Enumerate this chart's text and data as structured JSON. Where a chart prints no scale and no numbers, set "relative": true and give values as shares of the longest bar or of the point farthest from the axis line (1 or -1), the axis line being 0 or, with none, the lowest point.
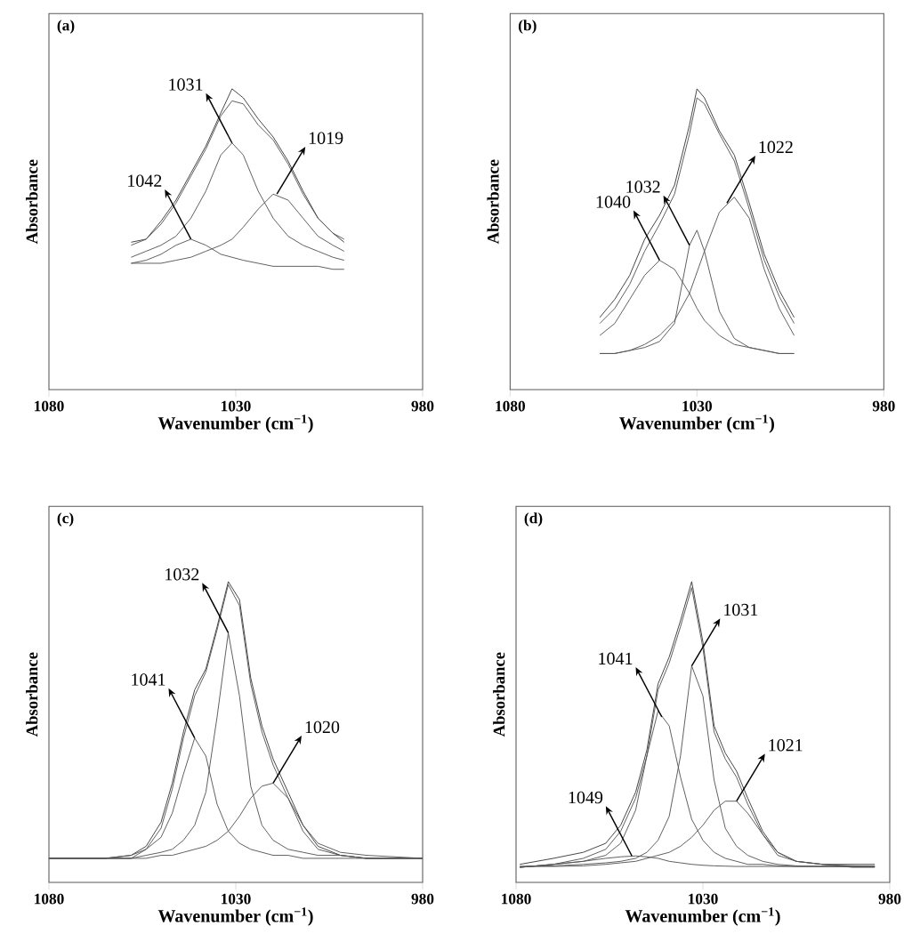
{
  "chart_data": [
    {
      "type": "line",
      "title": "(a)",
      "xlabel": "Wavenumber (cm$^{−1}$)",
      "ylabel": "Absorbance",
      "relative": true,
      "xlim": [
        1080,
        980
      ],
      "xticks": [
        1080,
        1030,
        980
      ],
      "x": [
        1058,
        1054,
        1050,
        1046,
        1042,
        1038,
        1034,
        1031,
        1028,
        1024,
        1020,
        1016,
        1012,
        1008,
        1004,
        1001
      ],
      "series": [
        {
          "color": "#3a3a3a",
          "values": [
            0.49,
            0.5,
            0.56,
            0.63,
            0.72,
            0.81,
            0.92,
            1.0,
            0.97,
            0.9,
            0.84,
            0.76,
            0.66,
            0.57,
            0.52,
            0.49
          ]
        },
        {
          "color": "#555555",
          "values": [
            0.48,
            0.5,
            0.55,
            0.62,
            0.71,
            0.8,
            0.91,
            0.96,
            0.95,
            0.88,
            0.83,
            0.75,
            0.65,
            0.57,
            0.52,
            0.5
          ]
        },
        {
          "color": "#555555",
          "values": [
            0.42,
            0.43,
            0.45,
            0.48,
            0.5,
            0.48,
            0.45,
            0.44,
            0.43,
            0.42,
            0.41,
            0.41,
            0.41,
            0.41,
            0.4,
            0.4
          ]
        },
        {
          "color": "#555555",
          "values": [
            0.44,
            0.46,
            0.48,
            0.51,
            0.57,
            0.66,
            0.78,
            0.82,
            0.78,
            0.66,
            0.57,
            0.51,
            0.48,
            0.46,
            0.44,
            0.43
          ]
        },
        {
          "color": "#555555",
          "values": [
            0.42,
            0.42,
            0.42,
            0.43,
            0.44,
            0.46,
            0.48,
            0.5,
            0.54,
            0.6,
            0.65,
            0.63,
            0.57,
            0.51,
            0.48,
            0.46
          ]
        }
      ],
      "annotations": [
        {
          "text": "1042",
          "x": 1042,
          "y": 0.5
        },
        {
          "text": "1031",
          "x": 1031,
          "y": 0.82
        },
        {
          "text": "1019",
          "x": 1019,
          "y": 0.65
        }
      ]
    },
    {
      "type": "line",
      "title": "(b)",
      "xlabel": "Wavenumber (cm$^{−1}$)",
      "ylabel": "Absorbance",
      "relative": true,
      "xlim": [
        1080,
        980
      ],
      "xticks": [
        1080,
        1030,
        980
      ],
      "x": [
        1056,
        1052,
        1048,
        1044,
        1040,
        1036,
        1032,
        1030,
        1028,
        1024,
        1020,
        1016,
        1012,
        1008,
        1004
      ],
      "series": [
        {
          "color": "#3a3a3a",
          "values": [
            0.24,
            0.3,
            0.38,
            0.5,
            0.58,
            0.68,
            0.88,
            1.0,
            0.97,
            0.86,
            0.78,
            0.62,
            0.45,
            0.33,
            0.24
          ]
        },
        {
          "color": "#555555",
          "values": [
            0.22,
            0.27,
            0.35,
            0.46,
            0.55,
            0.65,
            0.85,
            0.97,
            0.95,
            0.85,
            0.76,
            0.6,
            0.43,
            0.31,
            0.22
          ]
        },
        {
          "color": "#555555",
          "values": [
            0.18,
            0.22,
            0.3,
            0.38,
            0.43,
            0.4,
            0.32,
            0.27,
            0.23,
            0.18,
            0.15,
            0.14,
            0.13,
            0.12,
            0.12
          ]
        },
        {
          "color": "#555555",
          "values": [
            0.12,
            0.12,
            0.13,
            0.14,
            0.16,
            0.22,
            0.48,
            0.53,
            0.46,
            0.26,
            0.17,
            0.14,
            0.13,
            0.12,
            0.12
          ]
        },
        {
          "color": "#555555",
          "values": [
            0.12,
            0.12,
            0.13,
            0.15,
            0.18,
            0.23,
            0.32,
            0.39,
            0.46,
            0.59,
            0.64,
            0.57,
            0.4,
            0.27,
            0.18
          ]
        }
      ],
      "annotations": [
        {
          "text": "1040",
          "x": 1040,
          "y": 0.43
        },
        {
          "text": "1032",
          "x": 1032,
          "y": 0.48
        },
        {
          "text": "1022",
          "x": 1022,
          "y": 0.62
        }
      ]
    },
    {
      "type": "line",
      "title": "(c)",
      "xlabel": "Wavenumber (cm$^{−1}$)",
      "ylabel": "Absorbance",
      "relative": true,
      "xlim": [
        1080,
        980
      ],
      "xticks": [
        1080,
        1030,
        980
      ],
      "x": [
        1080,
        1065,
        1058,
        1054,
        1050,
        1047,
        1044,
        1041,
        1038,
        1035,
        1032,
        1029,
        1026,
        1023,
        1020,
        1016,
        1012,
        1008,
        1002,
        995,
        980
      ],
      "series": [
        {
          "color": "#3a3a3a",
          "values": [
            0.08,
            0.08,
            0.09,
            0.12,
            0.2,
            0.33,
            0.5,
            0.64,
            0.71,
            0.85,
            1.0,
            0.94,
            0.68,
            0.52,
            0.41,
            0.3,
            0.19,
            0.12,
            0.09,
            0.08,
            0.08
          ]
        },
        {
          "color": "#555555",
          "values": [
            0.08,
            0.08,
            0.08,
            0.11,
            0.18,
            0.31,
            0.48,
            0.62,
            0.7,
            0.84,
            0.99,
            0.92,
            0.66,
            0.5,
            0.39,
            0.28,
            0.17,
            0.11,
            0.09,
            0.08,
            0.08
          ]
        },
        {
          "color": "#555555",
          "values": [
            0.08,
            0.08,
            0.09,
            0.11,
            0.15,
            0.23,
            0.36,
            0.48,
            0.42,
            0.26,
            0.17,
            0.13,
            0.11,
            0.1,
            0.09,
            0.09,
            0.08,
            0.08,
            0.08,
            0.08,
            0.08
          ]
        },
        {
          "color": "#555555",
          "values": [
            0.08,
            0.08,
            0.08,
            0.09,
            0.1,
            0.11,
            0.14,
            0.19,
            0.3,
            0.55,
            0.83,
            0.62,
            0.32,
            0.19,
            0.14,
            0.11,
            0.1,
            0.09,
            0.09,
            0.08,
            0.08
          ]
        },
        {
          "color": "#555555",
          "values": [
            0.08,
            0.08,
            0.08,
            0.08,
            0.09,
            0.09,
            0.1,
            0.11,
            0.12,
            0.14,
            0.17,
            0.22,
            0.28,
            0.32,
            0.33,
            0.28,
            0.19,
            0.13,
            0.1,
            0.09,
            0.08
          ]
        }
      ],
      "annotations": [
        {
          "text": "1041",
          "x": 1041,
          "y": 0.48
        },
        {
          "text": "1032",
          "x": 1032,
          "y": 0.83
        },
        {
          "text": "1020",
          "x": 1020,
          "y": 0.33
        }
      ]
    },
    {
      "type": "line",
      "title": "(d)",
      "xlabel": "Wavenumber (cm$^{−1}$)",
      "ylabel": "Absorbance",
      "relative": true,
      "xlim": [
        1080,
        980
      ],
      "xticks": [
        1080,
        1030,
        980
      ],
      "x": [
        1079,
        1070,
        1062,
        1056,
        1052,
        1048,
        1045,
        1042,
        1039,
        1036,
        1033,
        1030,
        1027,
        1024,
        1021,
        1018,
        1014,
        1010,
        1005,
        998,
        990,
        984
      ],
      "series": [
        {
          "color": "#3a3a3a",
          "values": [
            0.06,
            0.08,
            0.1,
            0.13,
            0.19,
            0.3,
            0.44,
            0.66,
            0.75,
            0.87,
            1.0,
            0.8,
            0.52,
            0.43,
            0.37,
            0.28,
            0.17,
            0.1,
            0.07,
            0.06,
            0.06,
            0.06
          ]
        },
        {
          "color": "#555555",
          "values": [
            0.05,
            0.06,
            0.08,
            0.11,
            0.17,
            0.28,
            0.42,
            0.64,
            0.73,
            0.85,
            0.98,
            0.78,
            0.5,
            0.41,
            0.35,
            0.26,
            0.16,
            0.09,
            0.07,
            0.06,
            0.05,
            0.05
          ]
        },
        {
          "color": "#555555",
          "values": [
            0.05,
            0.06,
            0.07,
            0.08,
            0.085,
            0.088,
            0.085,
            0.08,
            0.07,
            0.065,
            0.06,
            0.057,
            0.055,
            0.054,
            0.053,
            0.053,
            0.053,
            0.053,
            0.053,
            0.053,
            0.053,
            0.053
          ]
        },
        {
          "color": "#555555",
          "values": [
            0.05,
            0.06,
            0.07,
            0.09,
            0.13,
            0.24,
            0.42,
            0.57,
            0.52,
            0.35,
            0.21,
            0.14,
            0.1,
            0.08,
            0.07,
            0.06,
            0.06,
            0.055,
            0.053,
            0.053,
            0.053,
            0.053
          ]
        },
        {
          "color": "#555555",
          "values": [
            0.053,
            0.055,
            0.06,
            0.065,
            0.07,
            0.08,
            0.1,
            0.14,
            0.22,
            0.42,
            0.72,
            0.62,
            0.34,
            0.18,
            0.12,
            0.09,
            0.07,
            0.06,
            0.055,
            0.053,
            0.053,
            0.053
          ]
        },
        {
          "color": "#555555",
          "values": [
            0.053,
            0.053,
            0.055,
            0.06,
            0.065,
            0.07,
            0.08,
            0.09,
            0.1,
            0.12,
            0.15,
            0.19,
            0.24,
            0.27,
            0.27,
            0.23,
            0.16,
            0.1,
            0.07,
            0.06,
            0.055,
            0.053
          ]
        }
      ],
      "annotations": [
        {
          "text": "1049",
          "x": 1049,
          "y": 0.088
        },
        {
          "text": "1041",
          "x": 1041,
          "y": 0.55
        },
        {
          "text": "1031",
          "x": 1033,
          "y": 0.72
        },
        {
          "text": "1021",
          "x": 1021,
          "y": 0.27
        }
      ]
    }
  ]
}
